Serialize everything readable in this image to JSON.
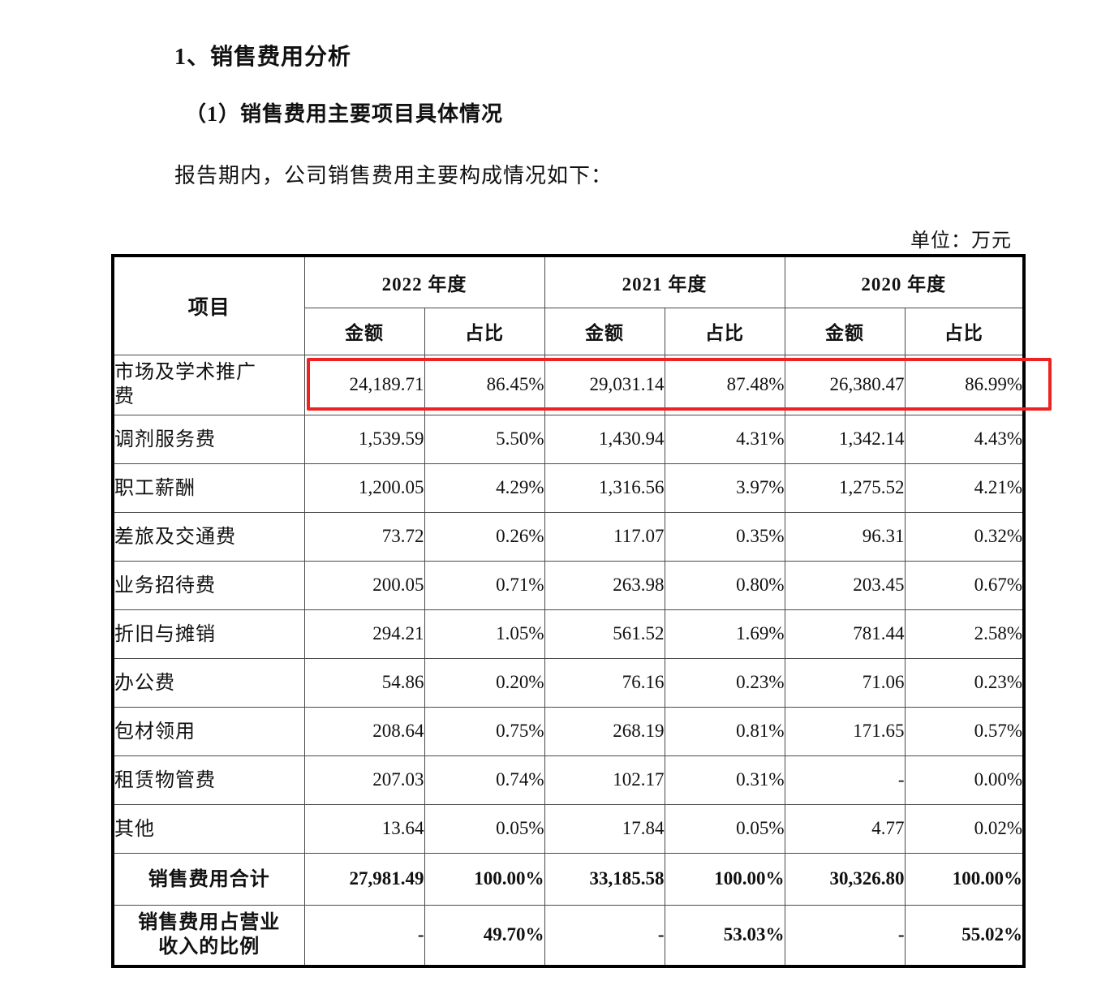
{
  "page": {
    "heading1": "1、销售费用分析",
    "heading2": "（1）销售费用主要项目具体情况",
    "intro": "报告期内，公司销售费用主要构成情况如下：",
    "unit_label": "单位：万元"
  },
  "table": {
    "item_header": "项目",
    "year_groups": [
      {
        "label": "2022 年度"
      },
      {
        "label": "2021 年度"
      },
      {
        "label": "2020 年度"
      }
    ],
    "sub_headers": {
      "amount": "金额",
      "ratio": "占比"
    },
    "rows": [
      {
        "item": "市场及学术推广费",
        "values": [
          "24,189.71",
          "86.45%",
          "29,031.14",
          "87.48%",
          "26,380.47",
          "86.99%"
        ],
        "highlighted": true,
        "bold": false
      },
      {
        "item": "调剂服务费",
        "values": [
          "1,539.59",
          "5.50%",
          "1,430.94",
          "4.31%",
          "1,342.14",
          "4.43%"
        ],
        "highlighted": false,
        "bold": false
      },
      {
        "item": "职工薪酬",
        "values": [
          "1,200.05",
          "4.29%",
          "1,316.56",
          "3.97%",
          "1,275.52",
          "4.21%"
        ],
        "highlighted": false,
        "bold": false
      },
      {
        "item": "差旅及交通费",
        "values": [
          "73.72",
          "0.26%",
          "117.07",
          "0.35%",
          "96.31",
          "0.32%"
        ],
        "highlighted": false,
        "bold": false
      },
      {
        "item": "业务招待费",
        "values": [
          "200.05",
          "0.71%",
          "263.98",
          "0.80%",
          "203.45",
          "0.67%"
        ],
        "highlighted": false,
        "bold": false
      },
      {
        "item": "折旧与摊销",
        "values": [
          "294.21",
          "1.05%",
          "561.52",
          "1.69%",
          "781.44",
          "2.58%"
        ],
        "highlighted": false,
        "bold": false
      },
      {
        "item": "办公费",
        "values": [
          "54.86",
          "0.20%",
          "76.16",
          "0.23%",
          "71.06",
          "0.23%"
        ],
        "highlighted": false,
        "bold": false
      },
      {
        "item": "包材领用",
        "values": [
          "208.64",
          "0.75%",
          "268.19",
          "0.81%",
          "171.65",
          "0.57%"
        ],
        "highlighted": false,
        "bold": false
      },
      {
        "item": "租赁物管费",
        "values": [
          "207.03",
          "0.74%",
          "102.17",
          "0.31%",
          "-",
          "0.00%"
        ],
        "highlighted": false,
        "bold": false
      },
      {
        "item": "其他",
        "values": [
          "13.64",
          "0.05%",
          "17.84",
          "0.05%",
          "4.77",
          "0.02%"
        ],
        "highlighted": false,
        "bold": false
      },
      {
        "item": "销售费用合计",
        "values": [
          "27,981.49",
          "100.00%",
          "33,185.58",
          "100.00%",
          "30,326.80",
          "100.00%"
        ],
        "highlighted": false,
        "bold": true
      },
      {
        "item": "销售费用占营业收入的比例",
        "values": [
          "-",
          "49.70%",
          "-",
          "53.03%",
          "-",
          "55.02%"
        ],
        "highlighted": false,
        "bold": true
      }
    ],
    "highlight_color": "#ee2222"
  }
}
